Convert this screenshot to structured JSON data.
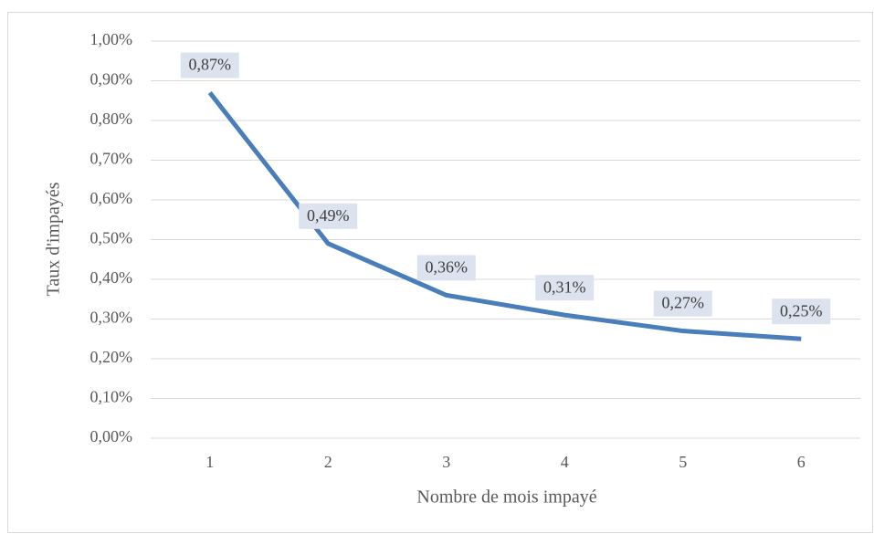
{
  "chart_data": {
    "type": "line",
    "x_label": "Nombre de mois impayé",
    "y_label": "Taux d'impayés",
    "categories": [
      "1",
      "2",
      "3",
      "4",
      "5",
      "6"
    ],
    "series": [
      {
        "name": "Taux d'impayés",
        "color": "#4a7ebb",
        "values": [
          0.87,
          0.49,
          0.36,
          0.31,
          0.27,
          0.25
        ],
        "value_labels": [
          "0,87%",
          "0,49%",
          "0,36%",
          "0,31%",
          "0,27%",
          "0,25%"
        ]
      }
    ],
    "ylim": [
      0,
      1
    ],
    "yticks": [
      {
        "value": 0,
        "label": "0,00%"
      },
      {
        "value": 0.1,
        "label": "0,10%"
      },
      {
        "value": 0.2,
        "label": "0,20%"
      },
      {
        "value": 0.3,
        "label": "0,30%"
      },
      {
        "value": 0.4,
        "label": "0,40%"
      },
      {
        "value": 0.5,
        "label": "0,50%"
      },
      {
        "value": 0.6,
        "label": "0,60%"
      },
      {
        "value": 0.7,
        "label": "0,70%"
      },
      {
        "value": 0.8,
        "label": "0,80%"
      },
      {
        "value": 0.9,
        "label": "0,90%"
      },
      {
        "value": 1,
        "label": "1,00%"
      }
    ],
    "grid": true
  }
}
